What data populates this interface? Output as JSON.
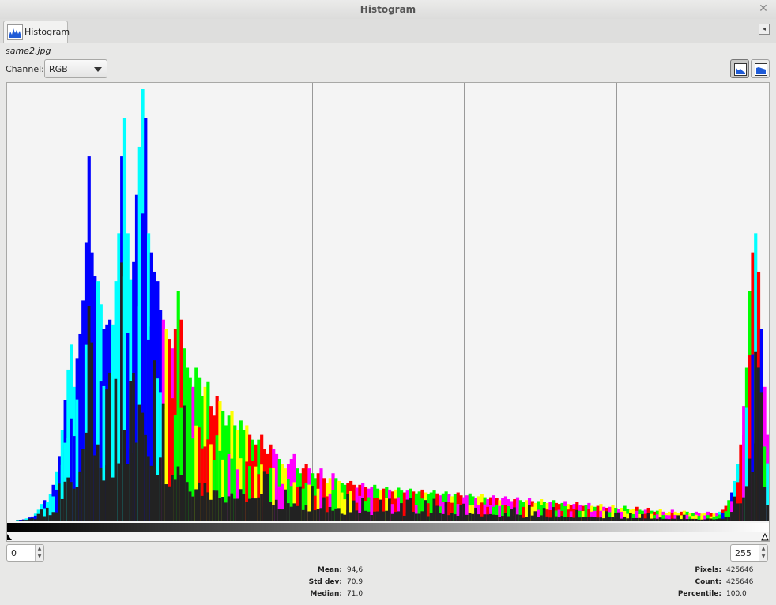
{
  "window": {
    "title": "Histogram"
  },
  "tab": {
    "label": "Histogram"
  },
  "image": {
    "filename": "same2.jpg"
  },
  "channel": {
    "label": "Channel:",
    "value": "RGB"
  },
  "range": {
    "low": "0",
    "high": "255"
  },
  "stats": {
    "mean_label": "Mean:",
    "mean": "94,6",
    "stddev_label": "Std dev:",
    "stddev": "70,9",
    "median_label": "Median:",
    "median": "71,0",
    "pixels_label": "Pixels:",
    "pixels": "425646",
    "count_label": "Count:",
    "count": "425646",
    "percentile_label": "Percentile:",
    "percentile": "100,0"
  },
  "colors": {
    "red": "#ff0000",
    "green": "#00ff00",
    "blue": "#0000ff",
    "cyan": "#00ffff",
    "magenta": "#ff00ff",
    "yellow": "#ffff00",
    "gray": "#222222"
  },
  "chart_data": {
    "type": "bar",
    "xlim": [
      0,
      255
    ],
    "grid": true,
    "series": [
      {
        "values": [
          0,
          0,
          0,
          1,
          1,
          2,
          3,
          4,
          5,
          8,
          12,
          18,
          22,
          20,
          28,
          38,
          52,
          68,
          95,
          126,
          158,
          184,
          140,
          170,
          195,
          230,
          290,
          380,
          280,
          255,
          250,
          226,
          200,
          205,
          210,
          205,
          250,
          300,
          380,
          420,
          300,
          252,
          270,
          340,
          390,
          450,
          420,
          300,
          280,
          260,
          250,
          220,
          210,
          200,
          190,
          180,
          200,
          240,
          210,
          180,
          160,
          150,
          140,
          160,
          150,
          130,
          140,
          145,
          120,
          110,
          130,
          125,
          115,
          100,
          110,
          115,
          100,
          95,
          105,
          95,
          100,
          90,
          85,
          80,
          85,
          90,
          75,
          70,
          80,
          75,
          70,
          65,
          60,
          55,
          60,
          65,
          70,
          55,
          50,
          55,
          60,
          55,
          50,
          45,
          50,
          55,
          45,
          40,
          45,
          50,
          45,
          42,
          40,
          38,
          40,
          42,
          38,
          35,
          38,
          40,
          36,
          34,
          36,
          38,
          34,
          32,
          34,
          36,
          33,
          31,
          33,
          35,
          32,
          30,
          32,
          34,
          31,
          29,
          31,
          33,
          30,
          28,
          30,
          32,
          29,
          27,
          29,
          31,
          28,
          26,
          28,
          30,
          27,
          25,
          27,
          29,
          26,
          24,
          26,
          28,
          25,
          23,
          25,
          27,
          24,
          22,
          24,
          26,
          23,
          21,
          23,
          25,
          22,
          20,
          22,
          24,
          21,
          19,
          21,
          23,
          20,
          19,
          20,
          22,
          19,
          18,
          19,
          21,
          18,
          17,
          18,
          20,
          17,
          16,
          17,
          19,
          16,
          15,
          16,
          18,
          15,
          14,
          15,
          17,
          14,
          13,
          14,
          16,
          13,
          12,
          13,
          15,
          12,
          11,
          12,
          14,
          11,
          10,
          11,
          13,
          10,
          9,
          10,
          12,
          10,
          9,
          10,
          11,
          10,
          9,
          9,
          10,
          9,
          8,
          9,
          10,
          9,
          8,
          9,
          10,
          12,
          16,
          22,
          30,
          42,
          60,
          80,
          120,
          160,
          240,
          280,
          300,
          260,
          200,
          140,
          90,
          50,
          20,
          8,
          3,
          1,
          0
        ]
      }
    ]
  }
}
